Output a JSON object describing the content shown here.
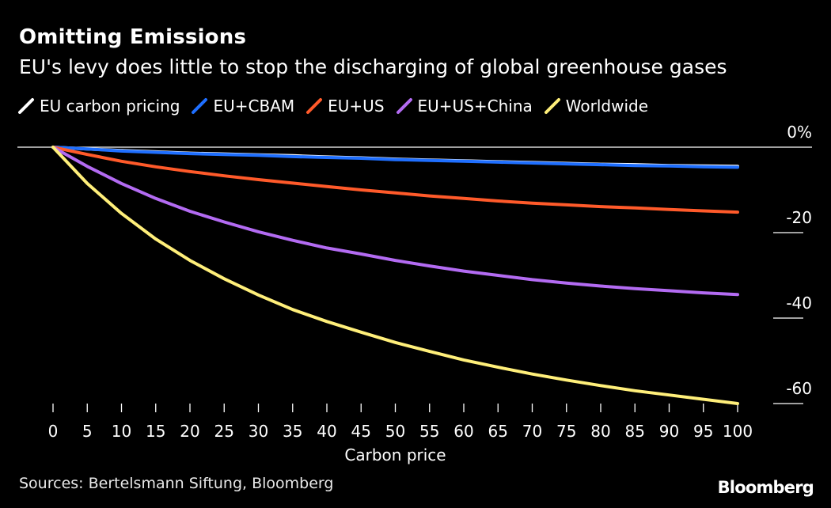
{
  "chart_data": {
    "type": "line",
    "title": "Omitting Emissions",
    "subtitle": "EU's levy does little to stop the discharging of global greenhouse gases",
    "xlabel": "Carbon price",
    "ylabel": "",
    "x": [
      0,
      5,
      10,
      15,
      20,
      25,
      30,
      35,
      40,
      45,
      50,
      55,
      60,
      65,
      70,
      75,
      80,
      85,
      90,
      95,
      100
    ],
    "xticks": [
      "0",
      "5",
      "10",
      "15",
      "20",
      "25",
      "30",
      "35",
      "40",
      "45",
      "50",
      "55",
      "60",
      "65",
      "70",
      "75",
      "80",
      "85",
      "90",
      "95",
      "100"
    ],
    "ylim": [
      -62,
      0
    ],
    "yticks": [
      {
        "value": 0,
        "label": "0%"
      },
      {
        "value": -20,
        "label": "-20"
      },
      {
        "value": -40,
        "label": "-40"
      },
      {
        "value": -60,
        "label": "-60"
      }
    ],
    "series": [
      {
        "name": "EU carbon pricing",
        "color": "#ffffff",
        "values": [
          0,
          -0.4,
          -0.8,
          -1.1,
          -1.4,
          -1.6,
          -1.8,
          -2.0,
          -2.3,
          -2.5,
          -2.8,
          -3.0,
          -3.2,
          -3.4,
          -3.6,
          -3.8,
          -4.0,
          -4.1,
          -4.3,
          -4.4,
          -4.5
        ]
      },
      {
        "name": "EU+CBAM",
        "color": "#1f6fff",
        "values": [
          0,
          -0.4,
          -0.9,
          -1.2,
          -1.5,
          -1.7,
          -1.9,
          -2.2,
          -2.4,
          -2.6,
          -2.9,
          -3.1,
          -3.3,
          -3.5,
          -3.7,
          -3.9,
          -4.1,
          -4.3,
          -4.4,
          -4.6,
          -4.7
        ]
      },
      {
        "name": "EU+US",
        "color": "#ff5a2a",
        "values": [
          0,
          -1.7,
          -3.3,
          -4.6,
          -5.7,
          -6.7,
          -7.6,
          -8.4,
          -9.2,
          -10.0,
          -10.7,
          -11.4,
          -12.0,
          -12.6,
          -13.1,
          -13.5,
          -13.9,
          -14.2,
          -14.6,
          -14.9,
          -15.2
        ]
      },
      {
        "name": "EU+US+China",
        "color": "#b36bf2",
        "values": [
          0,
          -4.5,
          -8.5,
          -12.0,
          -15.0,
          -17.5,
          -19.8,
          -21.8,
          -23.6,
          -25.0,
          -26.5,
          -27.8,
          -29.0,
          -30.0,
          -31.0,
          -31.8,
          -32.5,
          -33.1,
          -33.6,
          -34.1,
          -34.5
        ]
      },
      {
        "name": "Worldwide",
        "color": "#ffef7a",
        "values": [
          0,
          -8.5,
          -15.5,
          -21.5,
          -26.5,
          -30.8,
          -34.6,
          -38.0,
          -40.8,
          -43.3,
          -45.7,
          -47.8,
          -49.8,
          -51.5,
          -53.1,
          -54.5,
          -55.8,
          -57.0,
          -58.0,
          -59.0,
          -60.0
        ]
      }
    ]
  },
  "footer": {
    "source": "Sources: Bertelsmann Siftung, Bloomberg",
    "brand": "Bloomberg"
  }
}
